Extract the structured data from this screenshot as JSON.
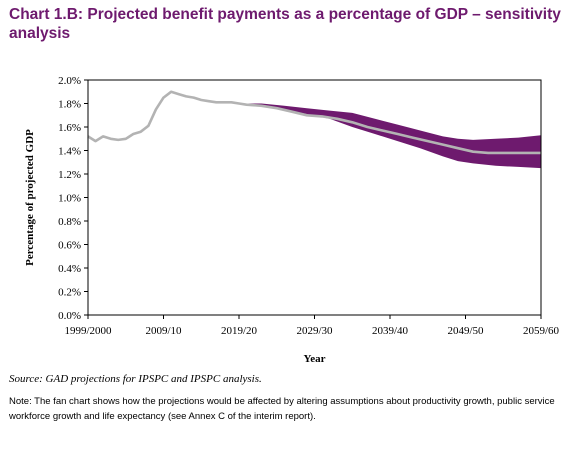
{
  "title": "Chart 1.B:  Projected benefit payments as a percentage of GDP – sensitivity analysis",
  "source": "Source: GAD projections for IPSPC and IPSPC analysis.",
  "note": "Note: The fan chart shows how the projections would be affected by altering assumptions about productivity growth, public service workforce growth and life expectancy (see Annex C of the interim report).",
  "colors": {
    "fan": "#6e1a6e",
    "central": "#b3b3b3",
    "title": "#6e1a6e"
  },
  "chart_data": {
    "type": "area",
    "xlabel": "Year",
    "ylabel": "Percentage of projected GDP",
    "ylim": [
      0,
      2.0
    ],
    "yticks": [
      "0.0%",
      "0.2%",
      "0.4%",
      "0.6%",
      "0.8%",
      "1.0%",
      "1.2%",
      "1.4%",
      "1.6%",
      "1.8%",
      "2.0%"
    ],
    "xlim": [
      1999,
      2059
    ],
    "xticks": [
      {
        "label": "1999/2000",
        "x": 1999
      },
      {
        "label": "2009/10",
        "x": 2009
      },
      {
        "label": "2019/20",
        "x": 2019
      },
      {
        "label": "2029/30",
        "x": 2029
      },
      {
        "label": "2039/40",
        "x": 2039
      },
      {
        "label": "2049/50",
        "x": 2049
      },
      {
        "label": "2059/60",
        "x": 2059
      }
    ],
    "central": {
      "x": [
        1999,
        2000,
        2001,
        2002,
        2003,
        2004,
        2005,
        2006,
        2007,
        2008,
        2009,
        2010,
        2011,
        2012,
        2013,
        2014,
        2015,
        2016,
        2017,
        2018,
        2019,
        2020,
        2022,
        2024,
        2026,
        2028,
        2030,
        2032,
        2034,
        2036,
        2038,
        2040,
        2042,
        2044,
        2046,
        2048,
        2050,
        2052,
        2054,
        2056,
        2058,
        2059
      ],
      "y": [
        1.52,
        1.48,
        1.52,
        1.5,
        1.49,
        1.5,
        1.54,
        1.56,
        1.61,
        1.75,
        1.85,
        1.9,
        1.88,
        1.86,
        1.85,
        1.83,
        1.82,
        1.81,
        1.81,
        1.81,
        1.8,
        1.79,
        1.78,
        1.76,
        1.73,
        1.7,
        1.69,
        1.67,
        1.64,
        1.6,
        1.57,
        1.54,
        1.51,
        1.48,
        1.45,
        1.42,
        1.39,
        1.38,
        1.38,
        1.38,
        1.38,
        1.38
      ]
    },
    "fan": {
      "x": [
        2019,
        2022,
        2025,
        2028,
        2031,
        2034,
        2037,
        2040,
        2043,
        2046,
        2048,
        2050,
        2053,
        2056,
        2059
      ],
      "upper": [
        1.8,
        1.8,
        1.78,
        1.76,
        1.74,
        1.72,
        1.67,
        1.62,
        1.57,
        1.52,
        1.5,
        1.49,
        1.5,
        1.51,
        1.53
      ],
      "lower": [
        1.8,
        1.78,
        1.75,
        1.71,
        1.67,
        1.6,
        1.54,
        1.48,
        1.42,
        1.35,
        1.31,
        1.29,
        1.27,
        1.26,
        1.25
      ]
    },
    "grid": false,
    "legend": "none"
  }
}
